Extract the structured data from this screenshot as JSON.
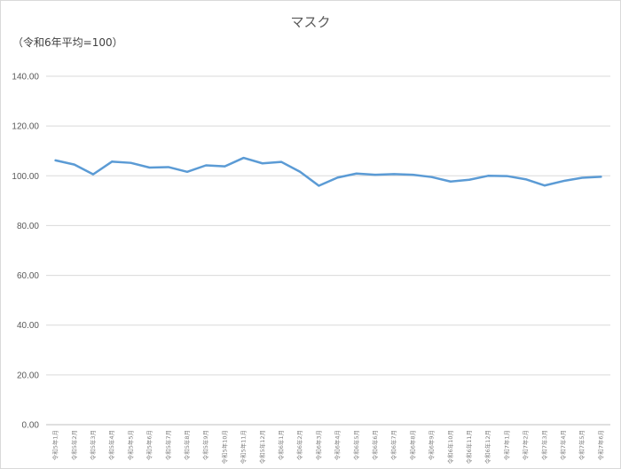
{
  "chart_data": {
    "type": "line",
    "title": "マスク",
    "subtitle": "（令和6年平均=100）",
    "xlabel": "",
    "ylabel": "",
    "ylim": [
      0,
      140
    ],
    "yticks": [
      "0.00",
      "20.00",
      "40.00",
      "60.00",
      "80.00",
      "100.00",
      "120.00",
      "140.00"
    ],
    "grid": true,
    "legend": "none",
    "line_color": "#5b9bd5",
    "categories": [
      "令和5年1月",
      "令和5年2月",
      "令和5年3月",
      "令和5年4月",
      "令和5年5月",
      "令和5年6月",
      "令和5年7月",
      "令和5年8月",
      "令和5年9月",
      "令和5年10月",
      "令和5年11月",
      "令和5年12月",
      "令和6年1月",
      "令和6年2月",
      "令和6年3月",
      "令和6年4月",
      "令和6年5月",
      "令和6年6月",
      "令和6年7月",
      "令和6年8月",
      "令和6年9月",
      "令和6年10月",
      "令和6年11月",
      "令和6年12月",
      "令和7年1月",
      "令和7年2月",
      "令和7年3月",
      "令和7年4月",
      "令和7年5月",
      "令和7年6月"
    ],
    "series": [
      {
        "values": [
          106.2,
          104.5,
          100.6,
          105.7,
          105.2,
          103.3,
          103.5,
          101.6,
          104.2,
          103.8,
          107.2,
          105.0,
          105.6,
          101.6,
          96.0,
          99.3,
          100.9,
          100.4,
          100.7,
          100.4,
          99.5,
          97.7,
          98.4,
          100.0,
          99.9,
          98.6,
          96.1,
          97.9,
          99.2,
          99.6
        ]
      }
    ]
  }
}
